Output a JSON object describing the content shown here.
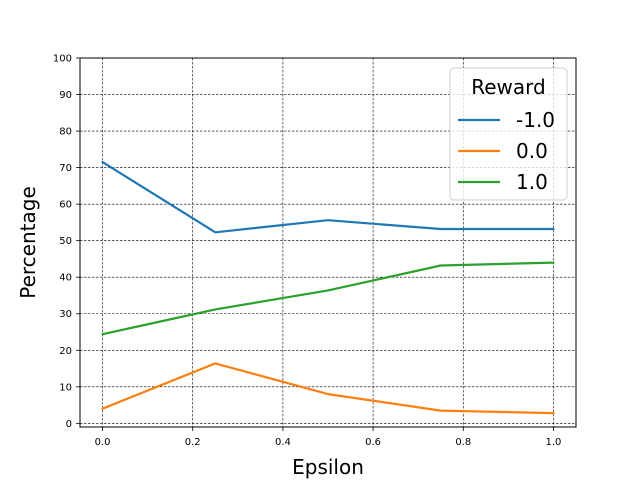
{
  "chart_data": {
    "type": "line",
    "title": "",
    "xlabel": "Epsilon",
    "ylabel": "Percentage",
    "xlim": [
      -0.05,
      1.05
    ],
    "ylim": [
      -1,
      100
    ],
    "xticks": [
      0.0,
      0.2,
      0.4,
      0.6,
      0.8,
      1.0
    ],
    "xtick_labels": [
      "0.0",
      "0.2",
      "0.4",
      "0.6",
      "0.8",
      "1.0"
    ],
    "yticks": [
      0,
      10,
      20,
      30,
      40,
      50,
      60,
      70,
      80,
      90,
      100
    ],
    "ytick_labels": [
      "0",
      "10",
      "20",
      "30",
      "40",
      "50",
      "60",
      "70",
      "80",
      "90",
      "100"
    ],
    "grid": true,
    "legend": {
      "title": "Reward",
      "placement": "top-right"
    },
    "x": [
      0.0,
      0.25,
      0.5,
      0.75,
      1.0
    ],
    "series": [
      {
        "name": "-1.0",
        "color": "#1f77b4",
        "values": [
          71.5,
          52.3,
          55.6,
          53.2,
          53.2
        ]
      },
      {
        "name": "0.0",
        "color": "#ff7f0e",
        "values": [
          4.0,
          16.4,
          8.0,
          3.5,
          2.8
        ]
      },
      {
        "name": "1.0",
        "color": "#2ca02c",
        "values": [
          24.4,
          31.2,
          36.4,
          43.2,
          44.0
        ]
      }
    ]
  }
}
